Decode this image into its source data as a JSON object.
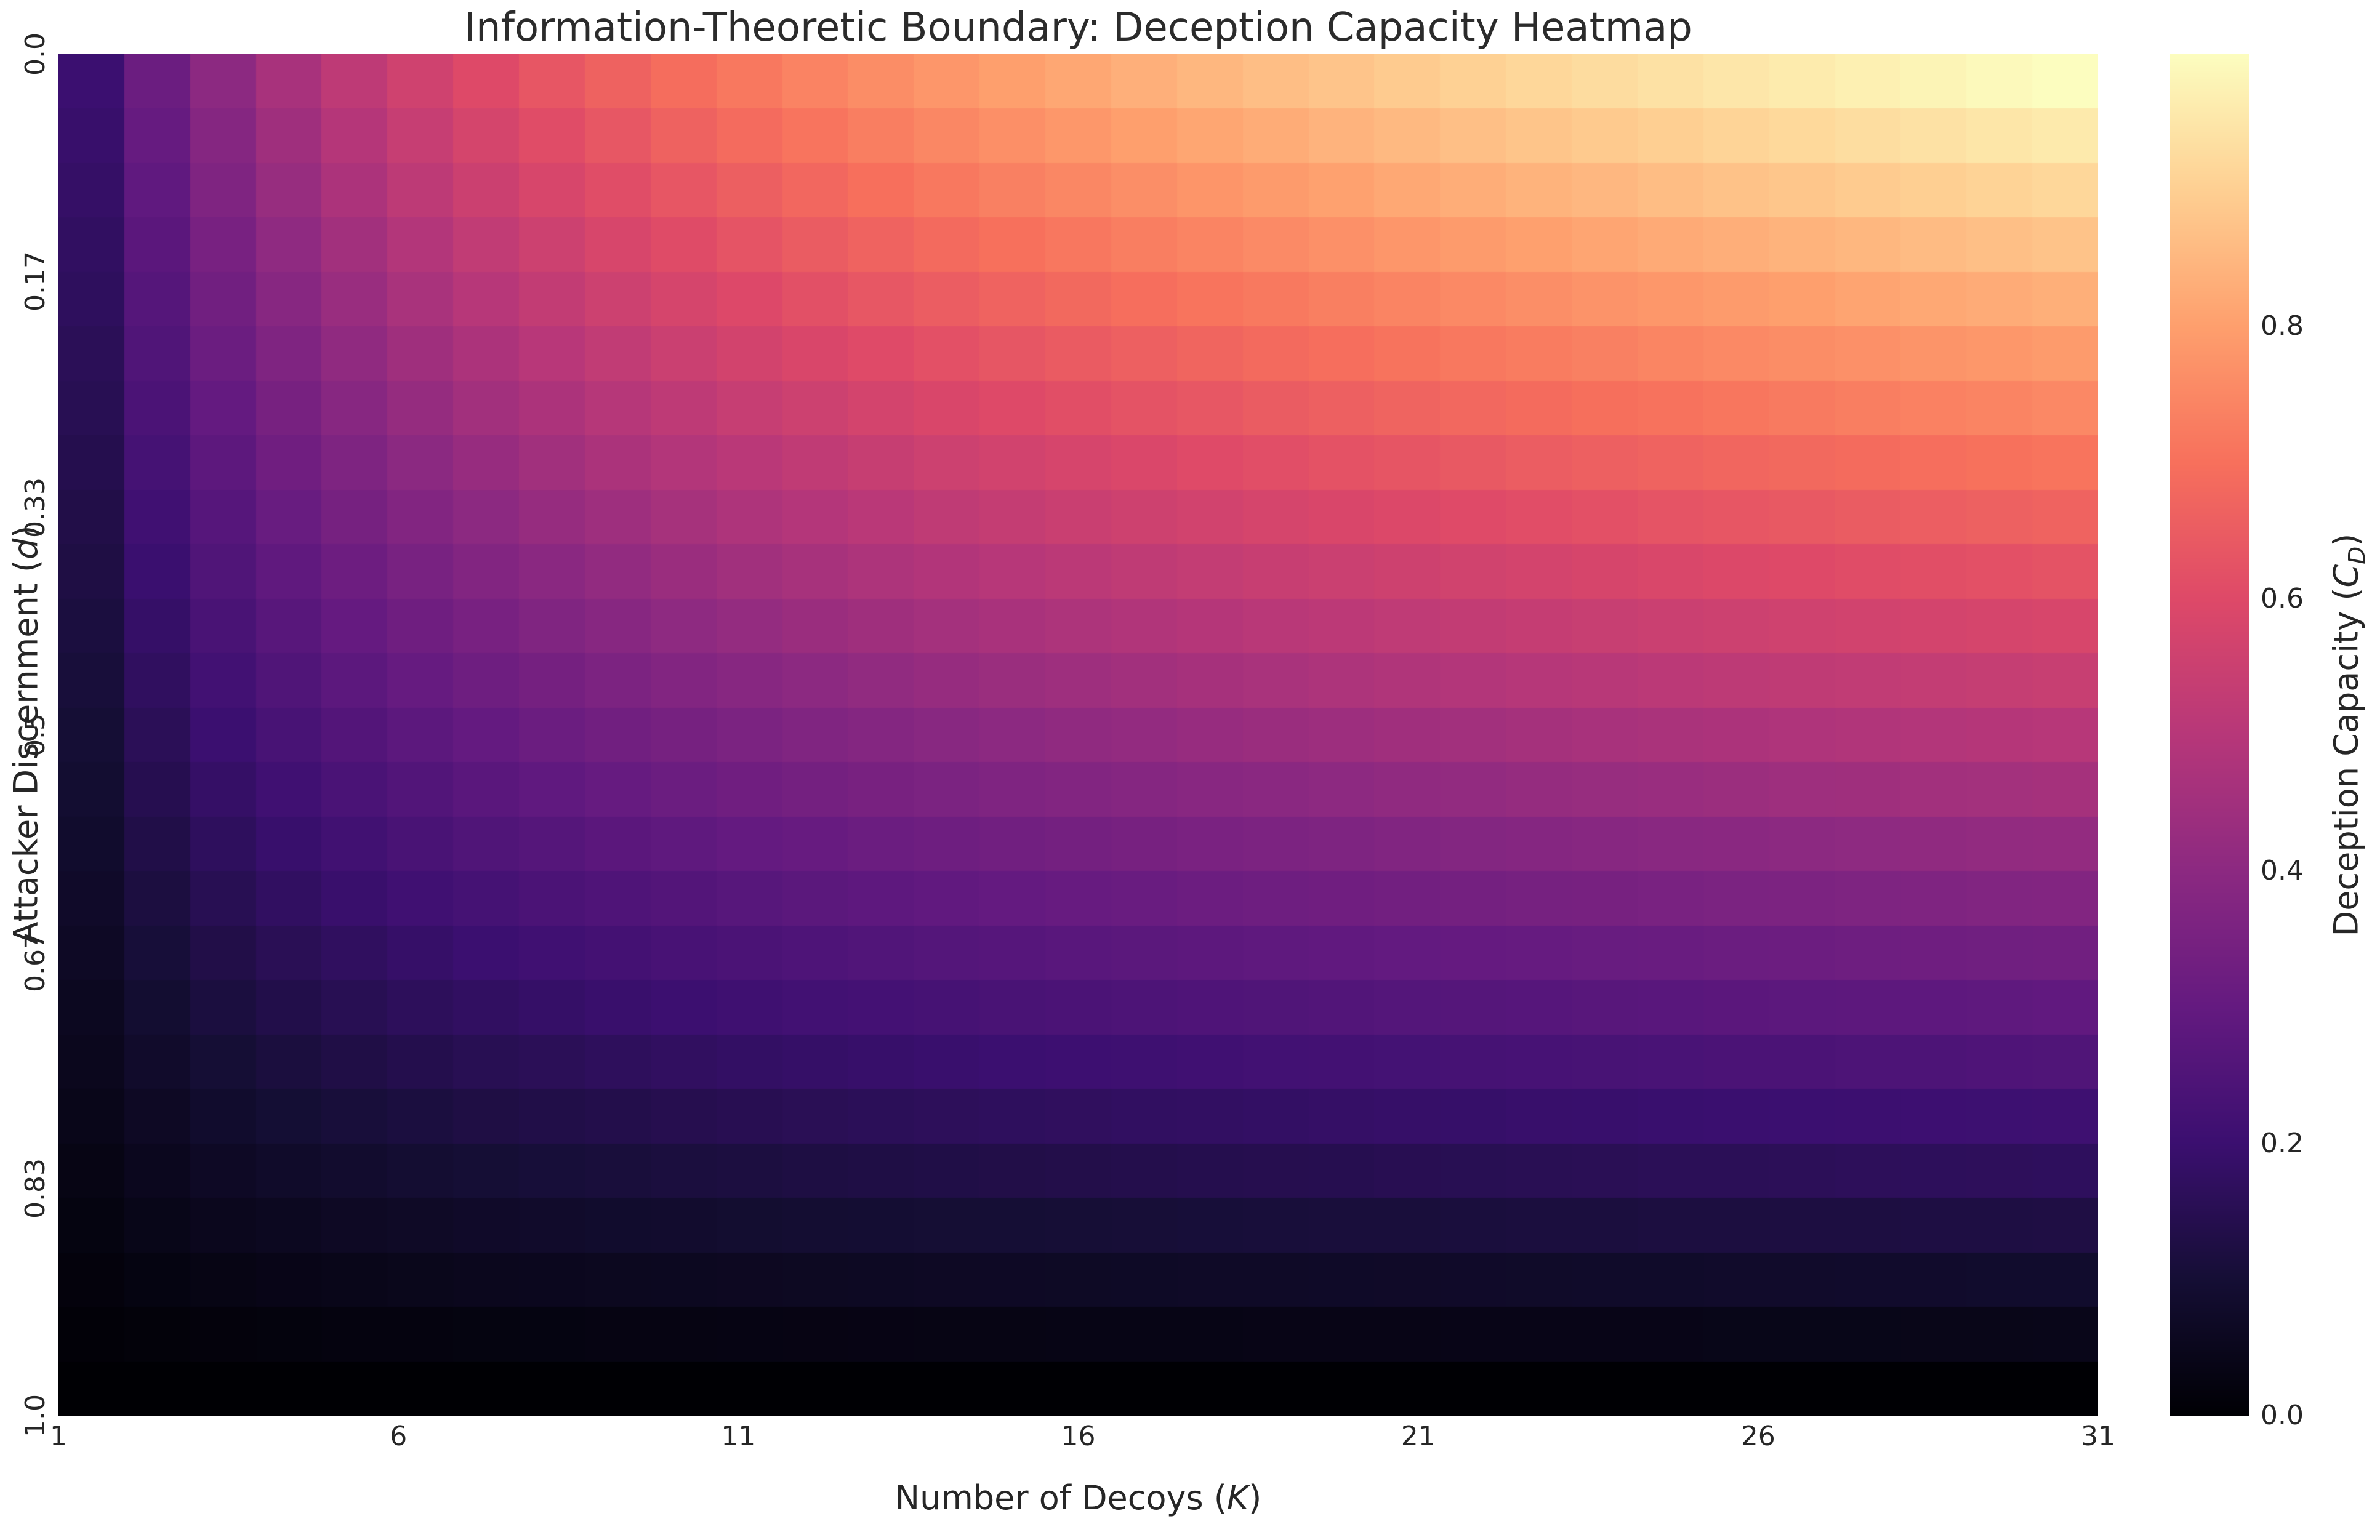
{
  "title": "Information-Theoretic Boundary: Deception Capacity Heatmap",
  "x_axis": {
    "label_prefix": "Number of Decoys (",
    "label_var": "K",
    "label_suffix": ")",
    "ticks": [
      "1",
      "6",
      "11",
      "16",
      "21",
      "26",
      "31"
    ],
    "tick_values": [
      1,
      6,
      11,
      16,
      21,
      26,
      31
    ],
    "tick_positions": [
      0,
      0.1667,
      0.3333,
      0.5,
      0.6667,
      0.8333,
      1
    ]
  },
  "y_axis": {
    "label_prefix": "Attacker Discernment (",
    "label_var": "d",
    "label_suffix": ")",
    "ticks": [
      "0.0",
      "0.17",
      "0.33",
      "0.5",
      "0.67",
      "0.83",
      "1.0"
    ],
    "tick_values": [
      0,
      0.17,
      0.33,
      0.5,
      0.67,
      0.83,
      1.0
    ],
    "tick_positions": [
      0,
      0.1667,
      0.3333,
      0.5,
      0.6667,
      0.8333,
      1
    ]
  },
  "colorbar": {
    "label_prefix": "Deception Capacity (",
    "label_var": "C",
    "label_sub": "D",
    "label_suffix": ")",
    "ticks": [
      "0.0",
      "0.2",
      "0.4",
      "0.6",
      "0.8"
    ],
    "tick_values": [
      0,
      0.2,
      0.4,
      0.6,
      0.8
    ],
    "vmin": 0,
    "vmax": 1
  },
  "chart_data": {
    "type": "heatmap",
    "title": "Information-Theoretic Boundary: Deception Capacity Heatmap",
    "xlabel": "Number of Decoys (K)",
    "ylabel": "Attacker Discernment (d)",
    "colorbar_label": "Deception Capacity (C_D)",
    "legend_position": "right-colorbar",
    "grid": false,
    "xlim": [
      1,
      31
    ],
    "ylim": [
      0,
      1
    ],
    "vmin": 0,
    "vmax": 1,
    "colormap": "magma",
    "colormap_stops": [
      [
        0,
        "#000004"
      ],
      [
        0.1,
        "#150e35"
      ],
      [
        0.2,
        "#3b0f70"
      ],
      [
        0.3,
        "#641a80"
      ],
      [
        0.4,
        "#8c2981"
      ],
      [
        0.5,
        "#b73779"
      ],
      [
        0.6,
        "#de4968"
      ],
      [
        0.7,
        "#f7705c"
      ],
      [
        0.8,
        "#fe9f6d"
      ],
      [
        0.9,
        "#fecf92"
      ],
      [
        1,
        "#fcfdbf"
      ]
    ],
    "x_ticks": [
      1,
      6,
      11,
      16,
      21,
      26,
      31
    ],
    "y_ticks": [
      0.0,
      0.17,
      0.33,
      0.5,
      0.67,
      0.83,
      1.0
    ],
    "colorbar_ticks": [
      0.0,
      0.2,
      0.4,
      0.6,
      0.8
    ],
    "x": [
      1,
      2,
      3,
      4,
      5,
      6,
      7,
      8,
      9,
      10,
      11,
      12,
      13,
      14,
      15,
      16,
      17,
      18,
      19,
      20,
      21,
      22,
      23,
      24,
      25,
      26,
      27,
      28,
      29,
      30,
      31
    ],
    "y": [
      0,
      0.042,
      0.083,
      0.125,
      0.167,
      0.208,
      0.25,
      0.292,
      0.333,
      0.375,
      0.417,
      0.458,
      0.5,
      0.542,
      0.583,
      0.625,
      0.667,
      0.708,
      0.75,
      0.792,
      0.833,
      0.875,
      0.917,
      0.958,
      1
    ],
    "values": [
      [
        0.2,
        0.317,
        0.4,
        0.464,
        0.517,
        0.561,
        0.6,
        0.634,
        0.664,
        0.692,
        0.717,
        0.74,
        0.761,
        0.781,
        0.8,
        0.817,
        0.834,
        0.85,
        0.864,
        0.878,
        0.892,
        0.905,
        0.917,
        0.929,
        0.94,
        0.951,
        0.961,
        0.972,
        0.981,
        0.991,
        1.0
      ],
      [
        0.192,
        0.304,
        0.383,
        0.445,
        0.495,
        0.538,
        0.575,
        0.608,
        0.637,
        0.663,
        0.687,
        0.709,
        0.73,
        0.749,
        0.767,
        0.783,
        0.799,
        0.814,
        0.828,
        0.842,
        0.855,
        0.867,
        0.879,
        0.89,
        0.901,
        0.911,
        0.921,
        0.931,
        0.94,
        0.95,
        0.958
      ],
      [
        0.183,
        0.291,
        0.367,
        0.426,
        0.474,
        0.515,
        0.55,
        0.581,
        0.609,
        0.634,
        0.657,
        0.678,
        0.698,
        0.716,
        0.733,
        0.749,
        0.764,
        0.779,
        0.792,
        0.805,
        0.818,
        0.829,
        0.841,
        0.851,
        0.862,
        0.872,
        0.881,
        0.891,
        0.9,
        0.908,
        0.917
      ],
      [
        0.175,
        0.277,
        0.35,
        0.406,
        0.452,
        0.491,
        0.525,
        0.555,
        0.581,
        0.605,
        0.627,
        0.648,
        0.666,
        0.684,
        0.7,
        0.715,
        0.73,
        0.743,
        0.756,
        0.769,
        0.78,
        0.792,
        0.802,
        0.813,
        0.823,
        0.832,
        0.841,
        0.85,
        0.859,
        0.867,
        0.875
      ],
      [
        0.167,
        0.264,
        0.333,
        0.387,
        0.431,
        0.468,
        0.5,
        0.528,
        0.554,
        0.577,
        0.597,
        0.617,
        0.635,
        0.651,
        0.667,
        0.681,
        0.695,
        0.708,
        0.72,
        0.732,
        0.743,
        0.754,
        0.764,
        0.774,
        0.783,
        0.792,
        0.801,
        0.81,
        0.818,
        0.826,
        0.833
      ],
      [
        0.158,
        0.251,
        0.317,
        0.368,
        0.409,
        0.444,
        0.475,
        0.502,
        0.526,
        0.548,
        0.568,
        0.586,
        0.603,
        0.619,
        0.633,
        0.647,
        0.66,
        0.673,
        0.684,
        0.695,
        0.706,
        0.716,
        0.726,
        0.735,
        0.744,
        0.753,
        0.761,
        0.769,
        0.777,
        0.784,
        0.792
      ],
      [
        0.15,
        0.238,
        0.3,
        0.348,
        0.388,
        0.421,
        0.45,
        0.475,
        0.498,
        0.519,
        0.538,
        0.555,
        0.571,
        0.586,
        0.6,
        0.613,
        0.625,
        0.637,
        0.648,
        0.659,
        0.669,
        0.679,
        0.688,
        0.697,
        0.705,
        0.713,
        0.721,
        0.729,
        0.736,
        0.743,
        0.75
      ],
      [
        0.142,
        0.225,
        0.283,
        0.329,
        0.366,
        0.398,
        0.425,
        0.449,
        0.471,
        0.49,
        0.508,
        0.524,
        0.539,
        0.553,
        0.567,
        0.579,
        0.591,
        0.602,
        0.612,
        0.622,
        0.632,
        0.641,
        0.65,
        0.658,
        0.666,
        0.674,
        0.681,
        0.688,
        0.695,
        0.702,
        0.708
      ],
      [
        0.133,
        0.211,
        0.267,
        0.31,
        0.345,
        0.374,
        0.4,
        0.423,
        0.443,
        0.461,
        0.478,
        0.493,
        0.508,
        0.521,
        0.533,
        0.545,
        0.556,
        0.566,
        0.576,
        0.586,
        0.595,
        0.603,
        0.611,
        0.619,
        0.627,
        0.634,
        0.641,
        0.648,
        0.654,
        0.661,
        0.667
      ],
      [
        0.125,
        0.198,
        0.25,
        0.29,
        0.323,
        0.351,
        0.375,
        0.396,
        0.415,
        0.432,
        0.448,
        0.463,
        0.476,
        0.488,
        0.5,
        0.511,
        0.521,
        0.531,
        0.54,
        0.549,
        0.557,
        0.565,
        0.573,
        0.58,
        0.588,
        0.594,
        0.601,
        0.607,
        0.613,
        0.619,
        0.625
      ],
      [
        0.117,
        0.185,
        0.233,
        0.271,
        0.302,
        0.328,
        0.35,
        0.37,
        0.388,
        0.404,
        0.418,
        0.432,
        0.444,
        0.456,
        0.467,
        0.477,
        0.486,
        0.496,
        0.504,
        0.512,
        0.52,
        0.528,
        0.535,
        0.542,
        0.548,
        0.555,
        0.561,
        0.567,
        0.572,
        0.578,
        0.583
      ],
      [
        0.108,
        0.172,
        0.217,
        0.252,
        0.28,
        0.304,
        0.325,
        0.343,
        0.36,
        0.375,
        0.388,
        0.401,
        0.412,
        0.423,
        0.433,
        0.443,
        0.452,
        0.46,
        0.468,
        0.476,
        0.483,
        0.49,
        0.497,
        0.503,
        0.509,
        0.515,
        0.521,
        0.526,
        0.532,
        0.537,
        0.542
      ],
      [
        0.1,
        0.158,
        0.2,
        0.232,
        0.258,
        0.281,
        0.3,
        0.317,
        0.332,
        0.346,
        0.358,
        0.37,
        0.381,
        0.391,
        0.4,
        0.409,
        0.417,
        0.425,
        0.432,
        0.439,
        0.446,
        0.452,
        0.458,
        0.464,
        0.47,
        0.475,
        0.481,
        0.486,
        0.491,
        0.495,
        0.5
      ],
      [
        0.092,
        0.145,
        0.183,
        0.213,
        0.237,
        0.257,
        0.275,
        0.291,
        0.305,
        0.317,
        0.329,
        0.339,
        0.349,
        0.358,
        0.367,
        0.375,
        0.382,
        0.389,
        0.396,
        0.403,
        0.409,
        0.415,
        0.42,
        0.426,
        0.431,
        0.436,
        0.441,
        0.445,
        0.45,
        0.454,
        0.458
      ],
      [
        0.083,
        0.132,
        0.167,
        0.193,
        0.215,
        0.234,
        0.25,
        0.264,
        0.277,
        0.288,
        0.299,
        0.308,
        0.317,
        0.326,
        0.333,
        0.341,
        0.347,
        0.354,
        0.36,
        0.366,
        0.372,
        0.377,
        0.382,
        0.387,
        0.392,
        0.396,
        0.401,
        0.405,
        0.409,
        0.413,
        0.417
      ],
      [
        0.075,
        0.119,
        0.15,
        0.174,
        0.194,
        0.211,
        0.225,
        0.238,
        0.249,
        0.259,
        0.269,
        0.278,
        0.286,
        0.293,
        0.3,
        0.307,
        0.313,
        0.319,
        0.324,
        0.329,
        0.334,
        0.339,
        0.344,
        0.348,
        0.353,
        0.357,
        0.361,
        0.364,
        0.368,
        0.372,
        0.375
      ],
      [
        0.067,
        0.106,
        0.133,
        0.155,
        0.172,
        0.187,
        0.2,
        0.211,
        0.221,
        0.231,
        0.239,
        0.247,
        0.254,
        0.26,
        0.267,
        0.272,
        0.278,
        0.283,
        0.288,
        0.293,
        0.297,
        0.302,
        0.306,
        0.31,
        0.313,
        0.317,
        0.32,
        0.324,
        0.327,
        0.33,
        0.333
      ],
      [
        0.058,
        0.092,
        0.117,
        0.135,
        0.151,
        0.164,
        0.175,
        0.185,
        0.194,
        0.202,
        0.209,
        0.216,
        0.222,
        0.228,
        0.233,
        0.238,
        0.243,
        0.248,
        0.252,
        0.256,
        0.26,
        0.264,
        0.267,
        0.271,
        0.274,
        0.277,
        0.28,
        0.283,
        0.286,
        0.289,
        0.292
      ],
      [
        0.05,
        0.079,
        0.1,
        0.116,
        0.129,
        0.14,
        0.15,
        0.158,
        0.166,
        0.173,
        0.179,
        0.185,
        0.19,
        0.195,
        0.2,
        0.204,
        0.208,
        0.212,
        0.216,
        0.22,
        0.223,
        0.226,
        0.229,
        0.232,
        0.235,
        0.238,
        0.24,
        0.243,
        0.245,
        0.248,
        0.25
      ],
      [
        0.042,
        0.066,
        0.083,
        0.097,
        0.108,
        0.117,
        0.125,
        0.132,
        0.138,
        0.144,
        0.149,
        0.154,
        0.159,
        0.163,
        0.167,
        0.17,
        0.174,
        0.177,
        0.18,
        0.183,
        0.186,
        0.188,
        0.191,
        0.193,
        0.196,
        0.198,
        0.2,
        0.202,
        0.204,
        0.206,
        0.208
      ],
      [
        0.033,
        0.053,
        0.067,
        0.077,
        0.086,
        0.094,
        0.1,
        0.106,
        0.111,
        0.115,
        0.119,
        0.123,
        0.127,
        0.13,
        0.133,
        0.136,
        0.139,
        0.142,
        0.144,
        0.146,
        0.149,
        0.151,
        0.153,
        0.155,
        0.157,
        0.158,
        0.16,
        0.162,
        0.164,
        0.165,
        0.167
      ],
      [
        0.025,
        0.04,
        0.05,
        0.058,
        0.065,
        0.07,
        0.075,
        0.079,
        0.083,
        0.086,
        0.09,
        0.093,
        0.095,
        0.098,
        0.1,
        0.102,
        0.104,
        0.106,
        0.108,
        0.11,
        0.111,
        0.113,
        0.115,
        0.116,
        0.118,
        0.119,
        0.12,
        0.121,
        0.123,
        0.124,
        0.125
      ],
      [
        0.017,
        0.026,
        0.033,
        0.039,
        0.043,
        0.047,
        0.05,
        0.053,
        0.055,
        0.058,
        0.06,
        0.062,
        0.063,
        0.065,
        0.067,
        0.068,
        0.069,
        0.071,
        0.072,
        0.073,
        0.074,
        0.075,
        0.076,
        0.077,
        0.078,
        0.079,
        0.08,
        0.081,
        0.082,
        0.083,
        0.083
      ],
      [
        0.008,
        0.013,
        0.017,
        0.019,
        0.022,
        0.023,
        0.025,
        0.026,
        0.028,
        0.029,
        0.03,
        0.031,
        0.032,
        0.033,
        0.033,
        0.034,
        0.035,
        0.035,
        0.036,
        0.037,
        0.037,
        0.038,
        0.038,
        0.039,
        0.039,
        0.04,
        0.04,
        0.04,
        0.041,
        0.041,
        0.042
      ],
      [
        0.0,
        0.0,
        0.0,
        0.0,
        0.0,
        0.0,
        0.0,
        0.0,
        0.0,
        0.0,
        0.0,
        0.0,
        0.0,
        0.0,
        0.0,
        0.0,
        0.0,
        0.0,
        0.0,
        0.0,
        0.0,
        0.0,
        0.0,
        0.0,
        0.0,
        0.0,
        0.0,
        0.0,
        0.0,
        0.0,
        0.0
      ]
    ]
  }
}
